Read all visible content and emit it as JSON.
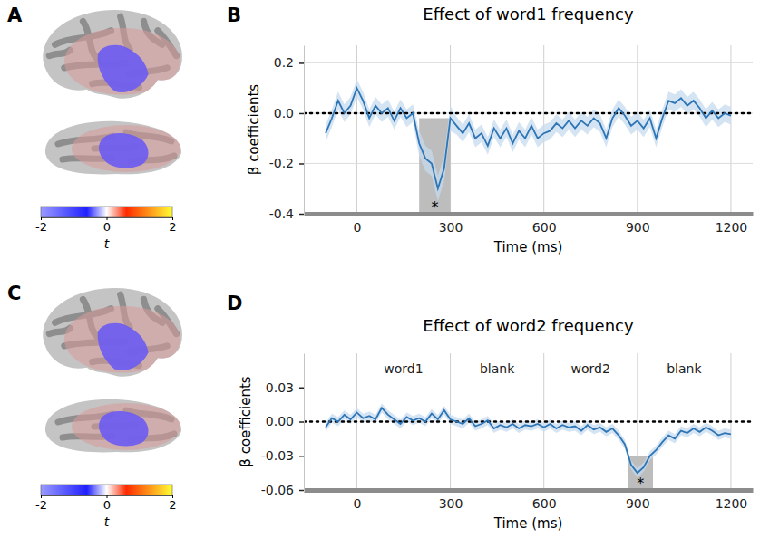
{
  "chart_data": [
    {
      "type": "brain",
      "panel": "A",
      "colorbar": {
        "lim": [
          -2,
          2
        ],
        "ticks": [
          -2,
          0,
          2
        ],
        "label": "t"
      }
    },
    {
      "type": "line",
      "panel": "B",
      "title": "Effect of word1 frequency",
      "xlabel": "Time (ms)",
      "ylabel": "β coefficients",
      "x": [
        -100,
        -80,
        -60,
        -40,
        -20,
        0,
        20,
        40,
        60,
        80,
        100,
        120,
        140,
        160,
        180,
        200,
        220,
        240,
        260,
        280,
        300,
        320,
        340,
        360,
        380,
        400,
        420,
        440,
        460,
        480,
        500,
        520,
        540,
        560,
        580,
        600,
        620,
        640,
        660,
        680,
        700,
        720,
        740,
        760,
        780,
        800,
        820,
        840,
        860,
        880,
        900,
        920,
        940,
        960,
        980,
        1000,
        1020,
        1040,
        1060,
        1080,
        1100,
        1120,
        1140,
        1160,
        1180,
        1200
      ],
      "series": [
        {
          "color": "#2e75b6",
          "values": [
            -0.08,
            -0.02,
            0.05,
            0.0,
            0.03,
            0.1,
            0.05,
            -0.02,
            0.03,
            0.0,
            0.02,
            -0.03,
            0.02,
            -0.02,
            0.0,
            -0.12,
            -0.18,
            -0.2,
            -0.3,
            -0.22,
            -0.02,
            -0.05,
            -0.08,
            -0.04,
            -0.1,
            -0.08,
            -0.13,
            -0.06,
            -0.1,
            -0.06,
            -0.12,
            -0.07,
            -0.1,
            -0.05,
            -0.1,
            -0.08,
            -0.07,
            -0.04,
            -0.06,
            -0.03,
            -0.06,
            -0.03,
            -0.05,
            -0.02,
            -0.04,
            -0.1,
            -0.02,
            0.02,
            -0.01,
            -0.05,
            -0.03,
            -0.06,
            -0.02,
            -0.1,
            -0.02,
            0.05,
            0.04,
            0.06,
            0.03,
            0.05,
            0.02,
            -0.02,
            0.01,
            -0.02,
            0.0,
            -0.01
          ],
          "error": [
            0.035,
            0.035,
            0.035,
            0.035,
            0.035,
            0.035,
            0.035,
            0.035,
            0.035,
            0.035,
            0.035,
            0.035,
            0.035,
            0.035,
            0.035,
            0.05,
            0.05,
            0.05,
            0.05,
            0.05,
            0.05,
            0.035,
            0.035,
            0.035,
            0.035,
            0.035,
            0.035,
            0.035,
            0.035,
            0.035,
            0.035,
            0.035,
            0.035,
            0.035,
            0.035,
            0.035,
            0.035,
            0.035,
            0.035,
            0.035,
            0.035,
            0.035,
            0.035,
            0.035,
            0.035,
            0.035,
            0.035,
            0.035,
            0.035,
            0.035,
            0.035,
            0.035,
            0.035,
            0.035,
            0.035,
            0.035,
            0.035,
            0.035,
            0.035,
            0.035,
            0.035,
            0.035,
            0.035,
            0.035,
            0.035,
            0.035
          ]
        }
      ],
      "xlim": [
        -170,
        1270
      ],
      "ylim": [
        -0.4,
        0.27
      ],
      "xticks": [
        0,
        300,
        600,
        900,
        1200
      ],
      "yticks": [
        -0.4,
        -0.2,
        {
          "value": 0,
          "label": "0.0"
        },
        0.2
      ],
      "grid": true,
      "reference_line": {
        "value": 0,
        "line_style": "dotted"
      },
      "clusters": [
        {
          "start": 200,
          "end": 300,
          "label": "*"
        }
      ]
    },
    {
      "type": "brain",
      "panel": "C",
      "colorbar": {
        "lim": [
          -2,
          2
        ],
        "ticks": [
          -2,
          0,
          2
        ],
        "label": "t"
      }
    },
    {
      "type": "line",
      "panel": "D",
      "title": "Effect of word2 frequency",
      "xlabel": "Time (ms)",
      "ylabel": "β coefficients",
      "x": [
        -100,
        -80,
        -60,
        -40,
        -20,
        0,
        20,
        40,
        60,
        80,
        100,
        120,
        140,
        160,
        180,
        200,
        220,
        240,
        260,
        280,
        300,
        320,
        340,
        360,
        380,
        400,
        420,
        440,
        460,
        480,
        500,
        520,
        540,
        560,
        580,
        600,
        620,
        640,
        660,
        680,
        700,
        720,
        740,
        760,
        780,
        800,
        820,
        840,
        860,
        880,
        900,
        920,
        940,
        960,
        980,
        1000,
        1020,
        1040,
        1060,
        1080,
        1100,
        1120,
        1140,
        1160,
        1180,
        1200
      ],
      "series": [
        {
          "color": "#2e75b6",
          "values": [
            -0.005,
            0.003,
            0.0,
            0.006,
            0.002,
            0.008,
            0.003,
            0.005,
            0.002,
            0.012,
            0.006,
            0.002,
            -0.002,
            0.004,
            0.001,
            0.003,
            0.0,
            0.007,
            0.002,
            0.01,
            0.002,
            0.0,
            -0.002,
            0.003,
            -0.004,
            -0.002,
            0.001,
            -0.006,
            -0.003,
            -0.005,
            -0.002,
            -0.006,
            -0.003,
            -0.004,
            -0.002,
            -0.005,
            -0.002,
            -0.006,
            -0.003,
            -0.005,
            -0.004,
            -0.008,
            -0.003,
            -0.007,
            -0.005,
            -0.009,
            -0.006,
            -0.012,
            -0.02,
            -0.038,
            -0.045,
            -0.04,
            -0.03,
            -0.025,
            -0.018,
            -0.012,
            -0.015,
            -0.008,
            -0.01,
            -0.006,
            -0.009,
            -0.005,
            -0.008,
            -0.012,
            -0.01,
            -0.011
          ],
          "error": [
            0.004,
            0.004,
            0.004,
            0.004,
            0.004,
            0.004,
            0.004,
            0.004,
            0.004,
            0.004,
            0.004,
            0.004,
            0.004,
            0.004,
            0.004,
            0.004,
            0.004,
            0.004,
            0.004,
            0.004,
            0.004,
            0.004,
            0.004,
            0.004,
            0.004,
            0.004,
            0.004,
            0.004,
            0.004,
            0.004,
            0.004,
            0.004,
            0.004,
            0.004,
            0.004,
            0.004,
            0.004,
            0.004,
            0.004,
            0.004,
            0.004,
            0.004,
            0.004,
            0.004,
            0.004,
            0.004,
            0.004,
            0.004,
            0.004,
            0.004,
            0.004,
            0.004,
            0.004,
            0.004,
            0.004,
            0.004,
            0.004,
            0.004,
            0.004,
            0.004,
            0.004,
            0.004,
            0.004,
            0.004,
            0.004,
            0.004
          ]
        }
      ],
      "xlim": [
        -170,
        1270
      ],
      "ylim": [
        -0.06,
        0.06
      ],
      "xticks": [
        0,
        300,
        600,
        900,
        1200
      ],
      "yticks": [
        -0.06,
        -0.03,
        {
          "value": 0,
          "label": "0.00"
        },
        0.03
      ],
      "grid": "x",
      "reference_line": {
        "value": 0,
        "line_style": "dotted"
      },
      "segments": [
        {
          "label": "word1",
          "start": 0,
          "end": 300
        },
        {
          "label": "blank",
          "start": 300,
          "end": 600
        },
        {
          "label": "word2",
          "start": 600,
          "end": 900
        },
        {
          "label": "blank",
          "start": 900,
          "end": 1200
        }
      ],
      "clusters": [
        {
          "start": 870,
          "end": 950,
          "label": "*"
        }
      ]
    }
  ]
}
